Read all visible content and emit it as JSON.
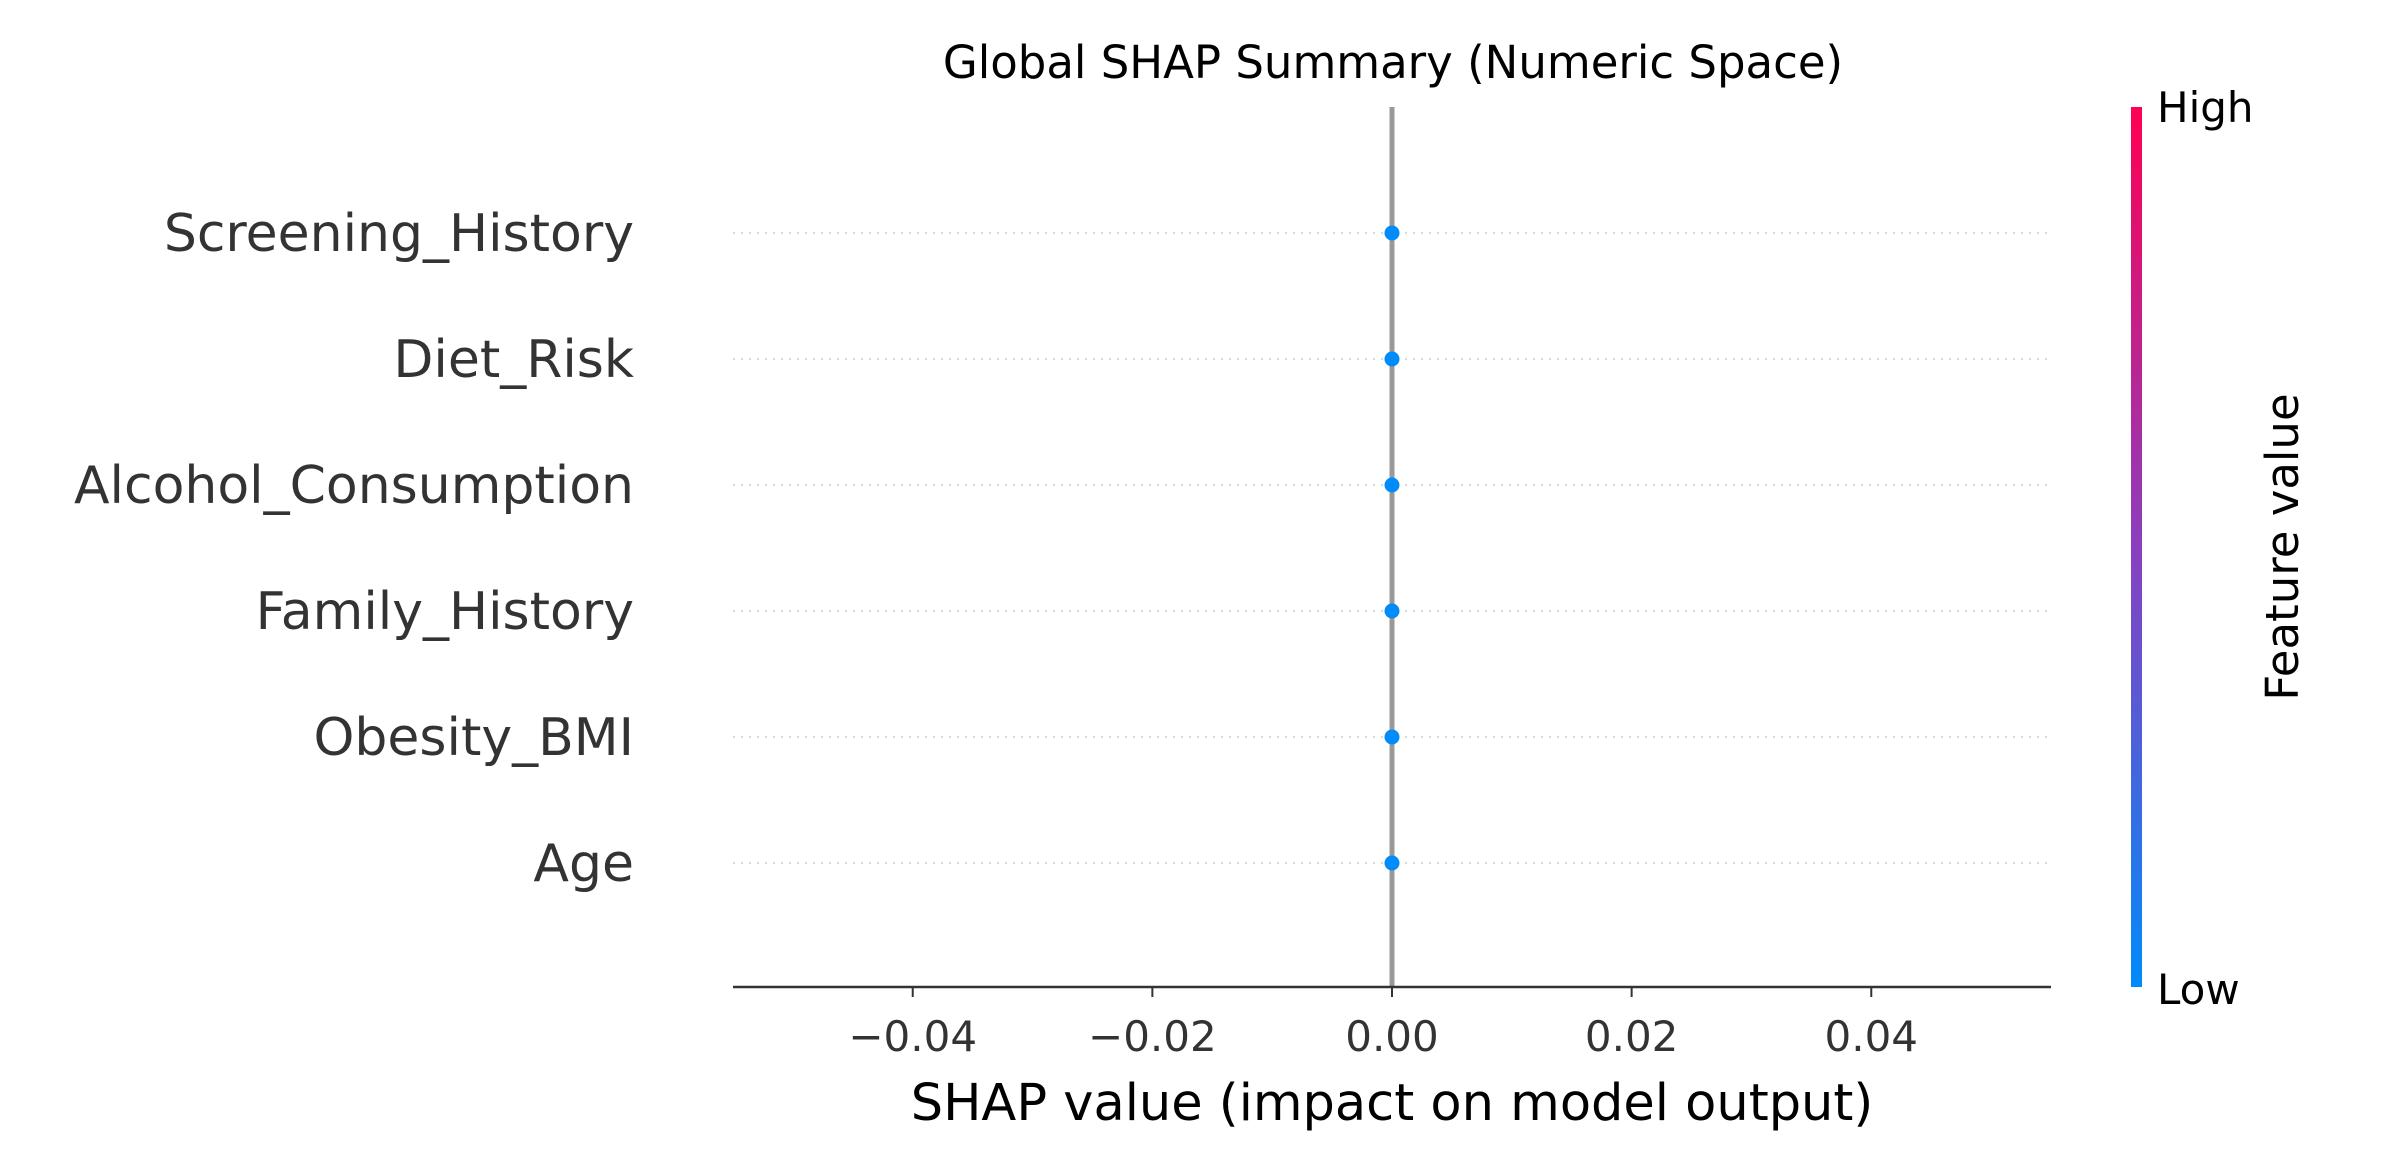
{
  "chart_data": {
    "type": "scatter",
    "title": "Global SHAP Summary (Numeric Space)",
    "xlabel": "SHAP value (impact on model output)",
    "xlim": [
      -0.055,
      0.055
    ],
    "xticks": [
      -0.04,
      -0.02,
      0.0,
      0.02,
      0.04
    ],
    "xtick_labels": [
      "−0.04",
      "−0.02",
      "0.00",
      "0.02",
      "0.04"
    ],
    "features": [
      "Screening_History",
      "Diet_Risk",
      "Alcohol_Consumption",
      "Family_History",
      "Obesity_BMI",
      "Age"
    ],
    "points": [
      {
        "feature": "Screening_History",
        "shap": 0.0
      },
      {
        "feature": "Diet_Risk",
        "shap": 0.0
      },
      {
        "feature": "Alcohol_Consumption",
        "shap": 0.0
      },
      {
        "feature": "Family_History",
        "shap": 0.0
      },
      {
        "feature": "Obesity_BMI",
        "shap": 0.0
      },
      {
        "feature": "Age",
        "shap": 0.0
      }
    ],
    "colorbar": {
      "title": "Feature value",
      "high_label": "High",
      "low_label": "Low",
      "high_color": "#ff0052",
      "mid_color": "#8a3fbf",
      "low_color": "#008bfb"
    },
    "point_color": "#008bfb",
    "zero_line_color": "#999999",
    "grid": "dotted horizontal"
  }
}
